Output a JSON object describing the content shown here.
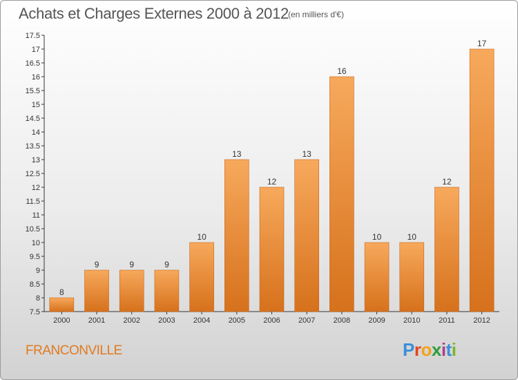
{
  "title": "Achats et Charges Externes 2000 à 2012",
  "subtitle": "(en milliers d'€)",
  "city": "FRANCONVILLE",
  "logo": {
    "text": "Proxiti",
    "colors": [
      "#3a8fd8",
      "#e8441e",
      "#f3a21b",
      "#2e9c3c",
      "#b43c8a",
      "#3a8fd8",
      "#7ab62c"
    ]
  },
  "colors": {
    "bar_light": "#f7a75a",
    "bar_dark": "#d8731e",
    "bar_edge": "#c8661a",
    "axis": "#333333"
  },
  "chart_data": {
    "type": "bar",
    "title": "Achats et Charges Externes 2000 à 2012",
    "categories": [
      "2000",
      "2001",
      "2002",
      "2003",
      "2004",
      "2005",
      "2006",
      "2007",
      "2008",
      "2009",
      "2010",
      "2011",
      "2012"
    ],
    "values": [
      8,
      9,
      9,
      9,
      10,
      13,
      12,
      13,
      16,
      10,
      10,
      12,
      17
    ],
    "ylim": [
      7.5,
      17.5
    ],
    "yticks": [
      "7.5",
      "8",
      "8.5",
      "9",
      "9.5",
      "10",
      "10.5",
      "11",
      "11.5",
      "12",
      "12.5",
      "13",
      "13.5",
      "14",
      "14.5",
      "15",
      "15.5",
      "16",
      "16.5",
      "17",
      "17.5"
    ],
    "grid": false
  }
}
